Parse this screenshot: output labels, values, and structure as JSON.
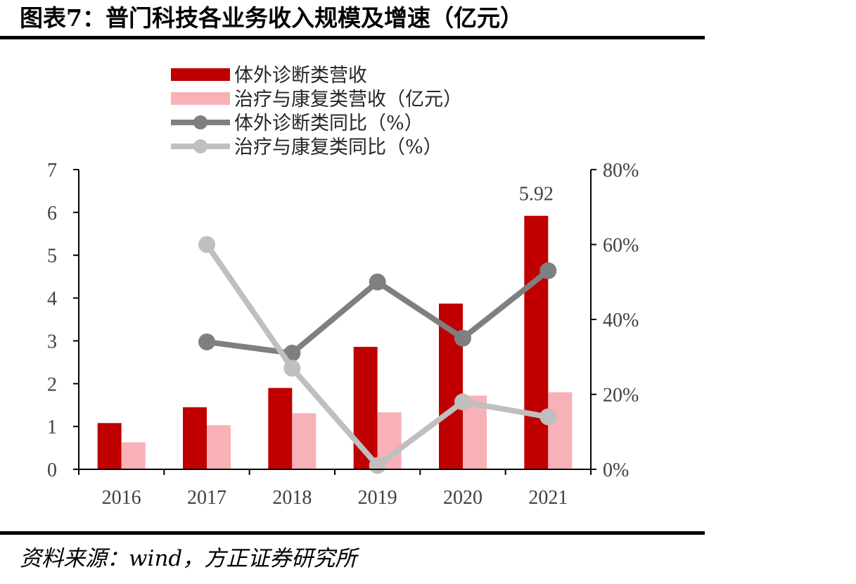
{
  "title": "图表7：普门科技各业务收入规模及增速（亿元）",
  "source": "资料来源：wind，方正证券研究所",
  "colors": {
    "series_a": "#C00000",
    "series_b": "#F8B1B6",
    "series_c": "#7F7F7F",
    "series_d": "#BFBFBF",
    "axis": "#000000"
  },
  "chart_data": {
    "type": "bar",
    "categories": [
      "2016",
      "2017",
      "2018",
      "2019",
      "2020",
      "2021"
    ],
    "series": [
      {
        "name": "体外诊断类营收",
        "type": "bar",
        "axis": "left",
        "values": [
          1.08,
          1.45,
          1.9,
          2.86,
          3.87,
          5.92
        ]
      },
      {
        "name": "治疗与康复类营收（亿元）",
        "type": "bar",
        "axis": "left",
        "values": [
          0.63,
          1.03,
          1.31,
          1.33,
          1.72,
          1.8
        ]
      },
      {
        "name": "体外诊断类同比（%）",
        "type": "line",
        "axis": "right",
        "values": [
          null,
          34,
          31,
          50,
          35,
          53
        ]
      },
      {
        "name": "治疗与康复类同比（%）",
        "type": "line",
        "axis": "right",
        "values": [
          null,
          60,
          27,
          1,
          18,
          14
        ]
      }
    ],
    "left_axis": {
      "ylim": [
        0,
        7
      ],
      "ticks": [
        "0",
        "1",
        "2",
        "3",
        "4",
        "5",
        "6",
        "7"
      ]
    },
    "right_axis": {
      "ylim": [
        0,
        80
      ],
      "ticks": [
        "0%",
        "20%",
        "40%",
        "60%",
        "80%"
      ]
    },
    "data_labels": [
      {
        "series": 0,
        "index": 5,
        "text": "5.92"
      }
    ],
    "grid": false,
    "legend_position": "top-left"
  }
}
